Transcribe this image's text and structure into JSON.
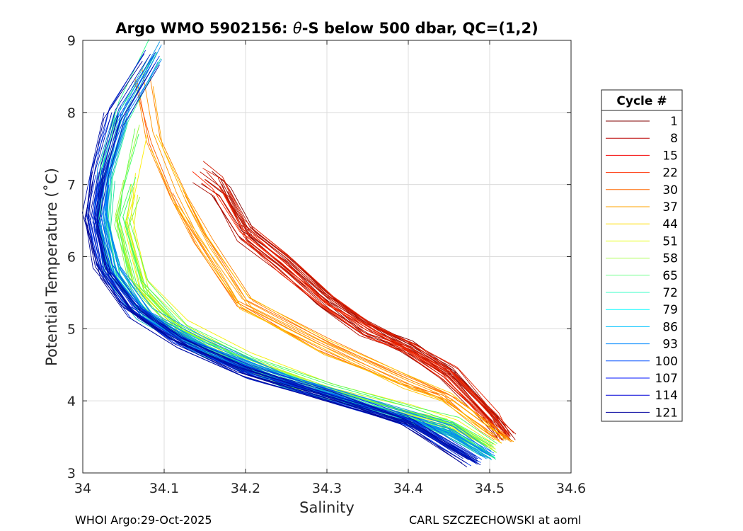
{
  "chart_data": {
    "type": "line",
    "title": "Argo WMO 5902156: θ-S below 500 dbar,  QC=(1,2)",
    "title_theta": "θ",
    "title_prefix": "Argo WMO 5902156: ",
    "title_suffix": "-S below 500 dbar,  QC=(1,2)",
    "xlabel": "Salinity",
    "ylabel": "Potential Temperature (˚C)",
    "xlim": [
      34.0,
      34.6
    ],
    "ylim": [
      3,
      9
    ],
    "x_ticks": [
      34.0,
      34.1,
      34.2,
      34.3,
      34.4,
      34.5,
      34.6
    ],
    "x_tick_labels": [
      "34",
      "34.1",
      "34.2",
      "34.3",
      "34.4",
      "34.5",
      "34.6"
    ],
    "y_ticks": [
      3,
      4,
      5,
      6,
      7,
      8,
      9
    ],
    "y_tick_labels": [
      "3",
      "4",
      "5",
      "6",
      "7",
      "8",
      "9"
    ],
    "grid": true,
    "colormap": "jet",
    "legend": {
      "title": "Cycle #",
      "placement": "outside-right",
      "entries": [
        "1",
        "8",
        "15",
        "22",
        "30",
        "37",
        "44",
        "51",
        "58",
        "65",
        "72",
        "79",
        "86",
        "93",
        "100",
        "107",
        "114",
        "121"
      ]
    },
    "series_groups": [
      {
        "name": "cycles 1-30 (dark red to red)",
        "color_start": "#800000",
        "color_end": "#ff2a00",
        "count": 30,
        "curve": [
          [
            34.147,
            7.15
          ],
          [
            34.17,
            6.95
          ],
          [
            34.2,
            6.35
          ],
          [
            34.25,
            5.9
          ],
          [
            34.3,
            5.4
          ],
          [
            34.35,
            5.0
          ],
          [
            34.4,
            4.75
          ],
          [
            34.45,
            4.4
          ],
          [
            34.5,
            3.8
          ],
          [
            34.52,
            3.5
          ]
        ]
      },
      {
        "name": "cycles 30-44 (orange)",
        "color_start": "#ff5500",
        "color_end": "#ffcc00",
        "count": 14,
        "curve": [
          [
            34.075,
            8.45
          ],
          [
            34.09,
            7.6
          ],
          [
            34.12,
            6.8
          ],
          [
            34.15,
            6.2
          ],
          [
            34.2,
            5.35
          ],
          [
            34.3,
            4.75
          ],
          [
            34.4,
            4.25
          ],
          [
            34.45,
            4.05
          ],
          [
            34.5,
            3.6
          ],
          [
            34.52,
            3.45
          ]
        ]
      },
      {
        "name": "cycles 44-65 (yellow to green)",
        "color_start": "#ffee00",
        "color_end": "#33ff66",
        "count": 21,
        "curve": [
          [
            34.075,
            7.85
          ],
          [
            34.06,
            7.0
          ],
          [
            34.05,
            6.5
          ],
          [
            34.07,
            5.6
          ],
          [
            34.12,
            5.0
          ],
          [
            34.2,
            4.55
          ],
          [
            34.3,
            4.15
          ],
          [
            34.4,
            3.85
          ],
          [
            34.45,
            3.7
          ],
          [
            34.5,
            3.35
          ]
        ]
      },
      {
        "name": "cycles 65-93 (green to cyan)",
        "color_start": "#22ff88",
        "color_end": "#0077ff",
        "count": 28,
        "curve": [
          [
            34.09,
            8.85
          ],
          [
            34.05,
            8.0
          ],
          [
            34.03,
            7.2
          ],
          [
            34.025,
            6.5
          ],
          [
            34.04,
            5.8
          ],
          [
            34.08,
            5.2
          ],
          [
            34.15,
            4.75
          ],
          [
            34.25,
            4.3
          ],
          [
            34.35,
            3.95
          ],
          [
            34.45,
            3.6
          ],
          [
            34.5,
            3.25
          ]
        ]
      },
      {
        "name": "cycles 93-121 (blue to navy)",
        "color_start": "#0044ff",
        "color_end": "#00008f",
        "count": 28,
        "curve": [
          [
            34.085,
            8.7
          ],
          [
            34.04,
            7.9
          ],
          [
            34.02,
            7.1
          ],
          [
            34.012,
            6.5
          ],
          [
            34.025,
            5.8
          ],
          [
            34.06,
            5.25
          ],
          [
            34.12,
            4.8
          ],
          [
            34.2,
            4.4
          ],
          [
            34.3,
            4.05
          ],
          [
            34.4,
            3.7
          ],
          [
            34.48,
            3.15
          ]
        ]
      }
    ]
  },
  "footer": {
    "left": "WHOI Argo:29-Oct-2025",
    "right": "CARL SZCZECHOWSKI at aoml"
  }
}
